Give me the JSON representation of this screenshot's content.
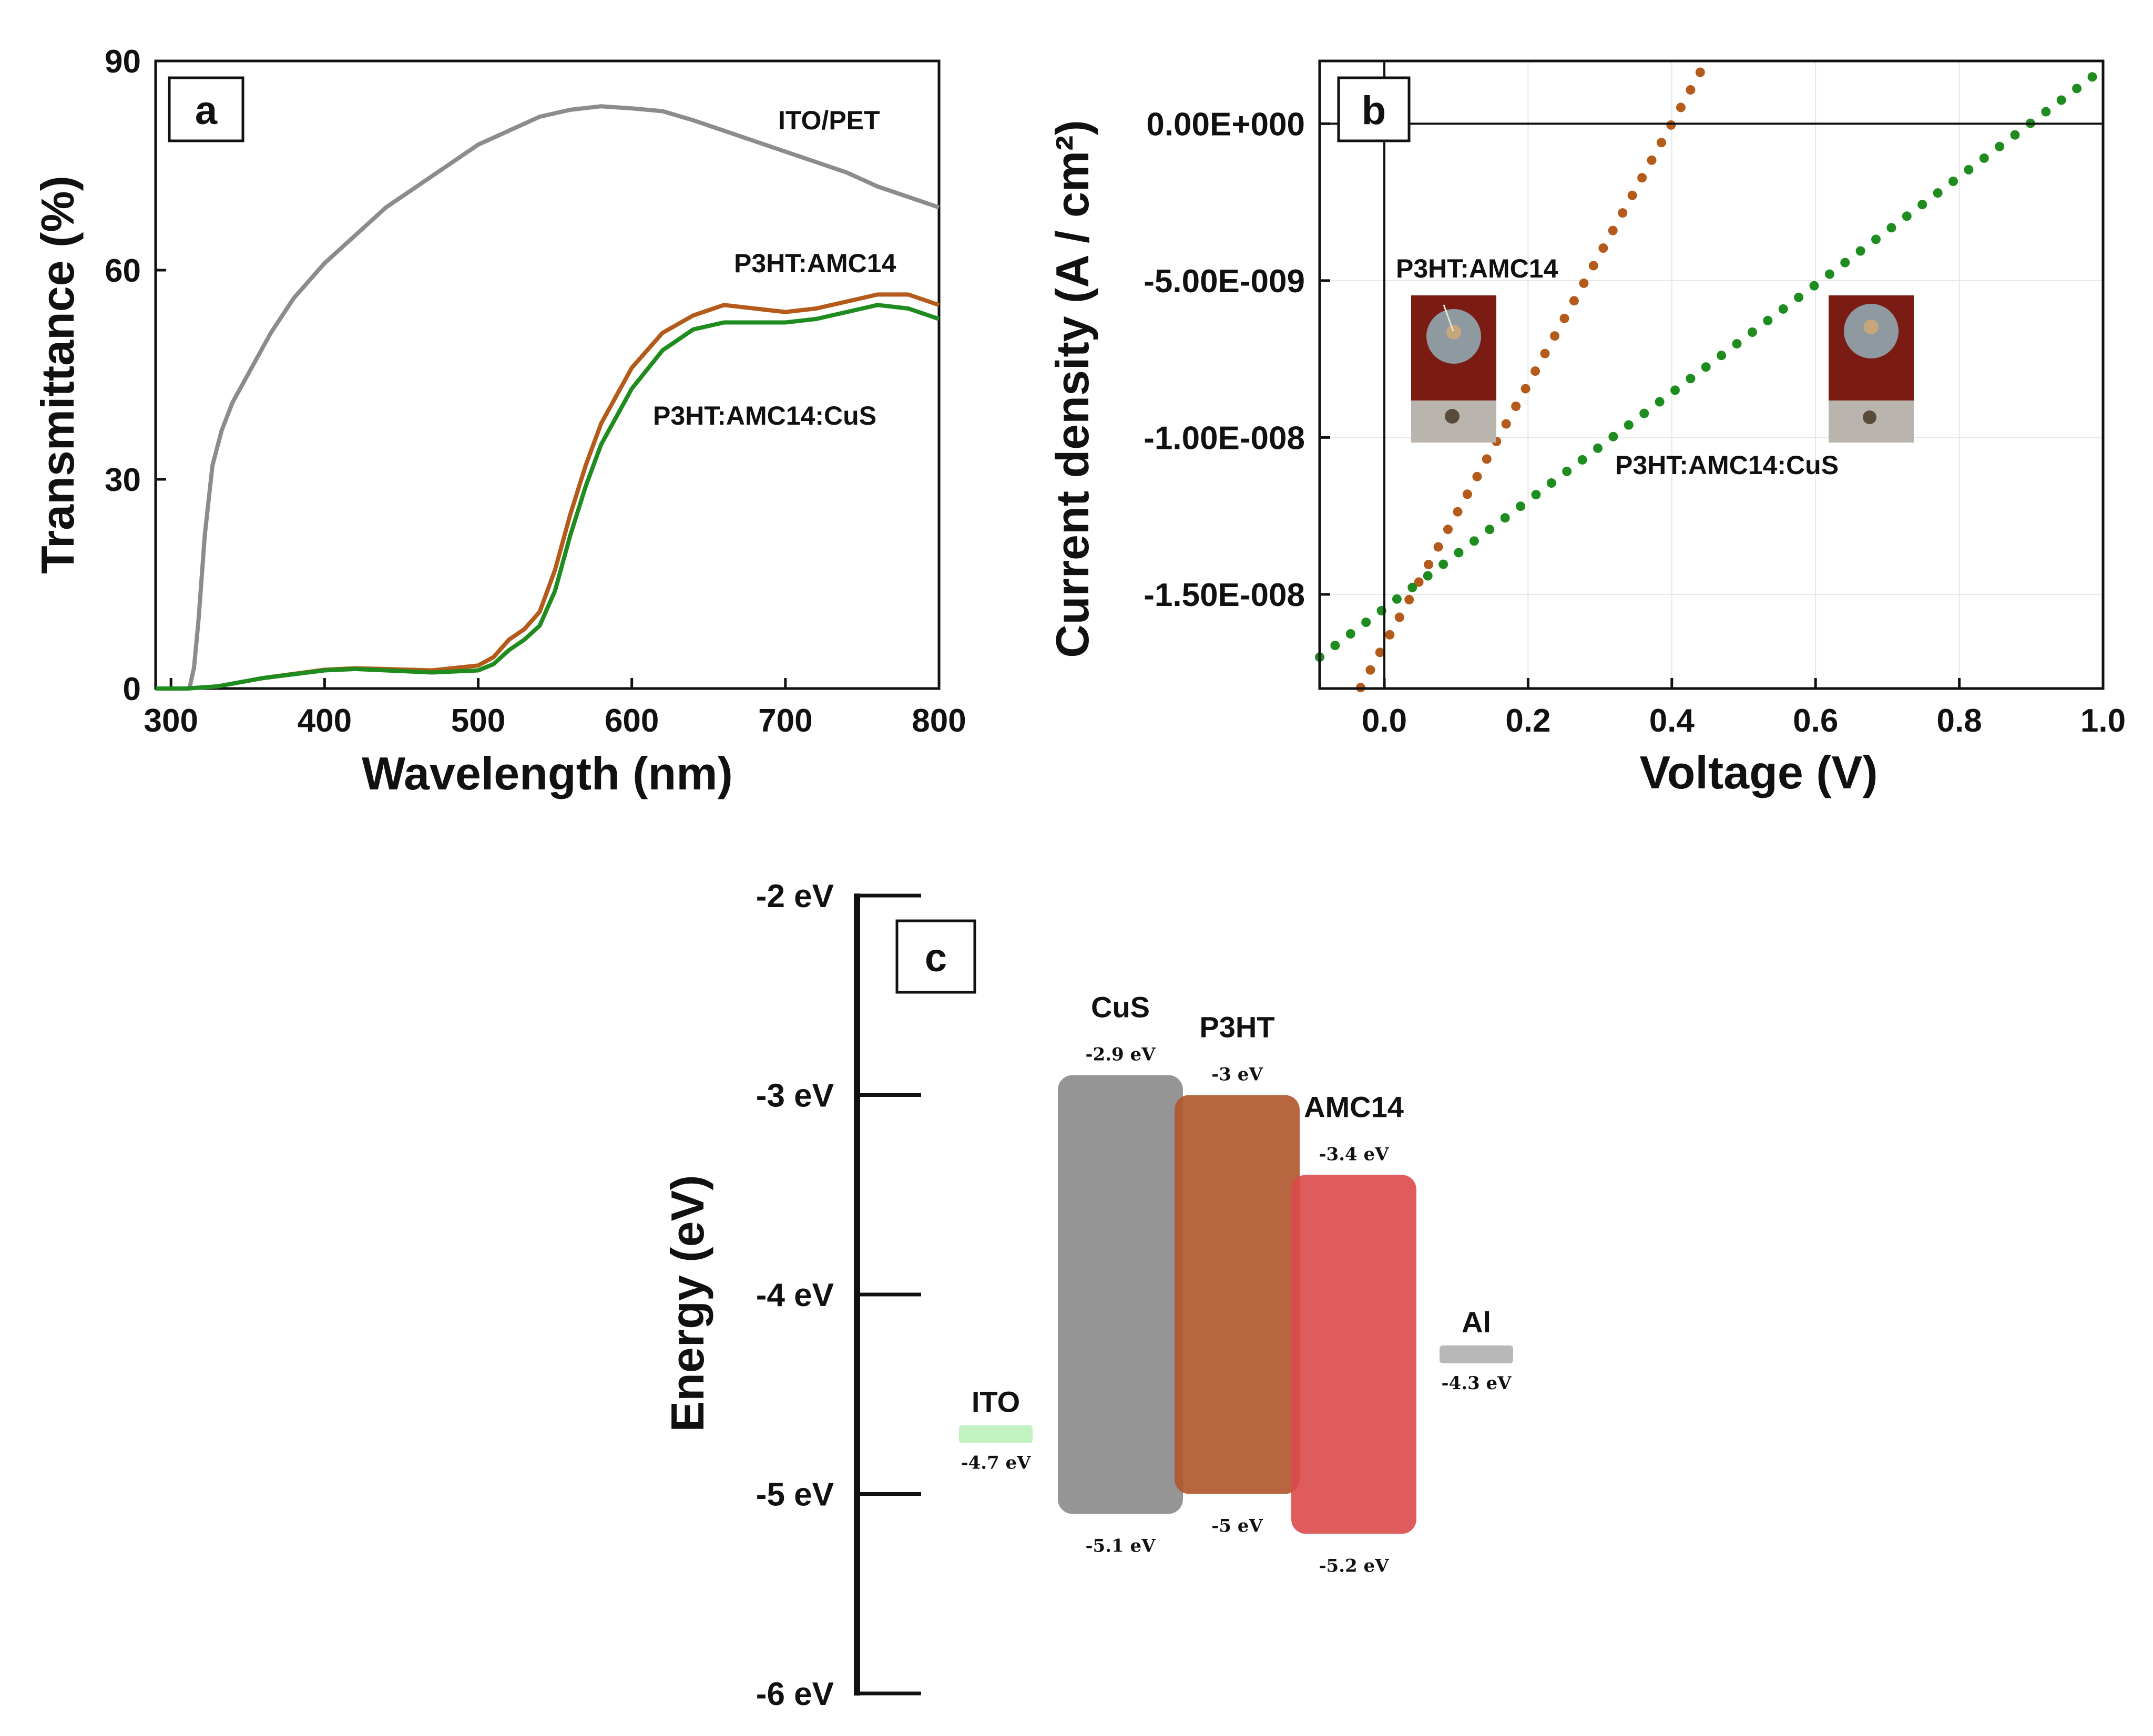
{
  "chart_data": [
    {
      "panel": "a",
      "type": "line",
      "title": "",
      "xlabel": "Wavelength  (nm)",
      "ylabel": "Transmittance  (%)",
      "xlim": [
        290,
        800
      ],
      "ylim": [
        0,
        90
      ],
      "xticks": [
        300,
        400,
        500,
        600,
        700,
        800
      ],
      "yticks": [
        0,
        30,
        60,
        90
      ],
      "grid": false,
      "series": [
        {
          "name": "ITO/PET",
          "color": "#8c8c8c",
          "x": [
            290,
            312,
            315,
            318,
            322,
            327,
            333,
            340,
            350,
            365,
            380,
            400,
            420,
            440,
            460,
            480,
            500,
            520,
            540,
            560,
            580,
            600,
            620,
            640,
            660,
            680,
            700,
            720,
            740,
            760,
            780,
            800
          ],
          "y": [
            0,
            0,
            3,
            10,
            22,
            32,
            37,
            41,
            45,
            51,
            56,
            61,
            65,
            69,
            72,
            75,
            78,
            80,
            82,
            83,
            83.5,
            83.2,
            82.8,
            81.5,
            80,
            78.5,
            77,
            75.5,
            74,
            72,
            70.5,
            69
          ]
        },
        {
          "name": "P3HT:AMC14",
          "color": "#b45a1a",
          "x": [
            290,
            310,
            330,
            360,
            400,
            420,
            440,
            470,
            500,
            510,
            520,
            530,
            540,
            550,
            560,
            570,
            580,
            600,
            620,
            640,
            660,
            680,
            700,
            720,
            740,
            760,
            780,
            800
          ],
          "y": [
            0,
            0,
            0.3,
            1.5,
            2.7,
            2.9,
            2.8,
            2.6,
            3.3,
            4.5,
            7,
            8.5,
            11,
            17,
            25,
            32,
            38,
            46,
            51,
            53.5,
            55,
            54.5,
            54,
            54.5,
            55.5,
            56.5,
            56.5,
            55
          ]
        },
        {
          "name": "P3HT:AMC14:CuS",
          "color": "#1e8c1e",
          "x": [
            290,
            310,
            330,
            360,
            400,
            420,
            440,
            470,
            500,
            510,
            520,
            530,
            540,
            550,
            560,
            570,
            580,
            600,
            620,
            640,
            660,
            680,
            700,
            720,
            740,
            760,
            780,
            800
          ],
          "y": [
            0,
            0,
            0.3,
            1.5,
            2.6,
            2.8,
            2.6,
            2.3,
            2.6,
            3.5,
            5.5,
            7,
            9,
            14,
            22,
            29,
            35,
            43,
            48.5,
            51.5,
            52.5,
            52.5,
            52.5,
            53,
            54,
            55,
            54.5,
            53
          ]
        }
      ],
      "annotations": [
        "ITO/PET",
        "P3HT:AMC14",
        "P3HT:AMC14:CuS"
      ]
    },
    {
      "panel": "b",
      "type": "scatter",
      "title": "",
      "xlabel": "Voltage  (V)",
      "ylabel": "Current  density  (A / cm²)",
      "xlim": [
        -0.09,
        1.0
      ],
      "ylim": [
        -1.8e-08,
        2e-09
      ],
      "xticks": [
        0.0,
        0.2,
        0.4,
        0.6,
        0.8,
        1.0
      ],
      "xtick_labels": [
        "0.0",
        "0.2",
        "0.4",
        "0.6",
        "0.8",
        "1.0"
      ],
      "yticks": [
        0,
        -5e-09,
        -1e-08,
        -1.5e-08
      ],
      "ytick_labels": [
        "0.00E+000",
        "-5.00E-009",
        "-1.00E-008",
        "-1.50E-008"
      ],
      "grid": true,
      "series": [
        {
          "name": "P3HT:AMC14",
          "color": "#b45a1a",
          "x_start": -0.06,
          "x_end": 0.47,
          "step": 0.0135,
          "line": {
            "slope": 4.15e-08,
            "intercept": -1.66e-08
          }
        },
        {
          "name": "P3HT:AMC14:CuS",
          "color": "#1e8c1e",
          "x_start": -0.09,
          "x_end": 1.0,
          "step": 0.0215,
          "line": {
            "slope": 1.72e-08,
            "intercept": -1.545e-08
          }
        }
      ],
      "annotations": [
        "P3HT:AMC14",
        "P3HT:AMC14:CuS"
      ]
    },
    {
      "panel": "c",
      "type": "diagram",
      "title": "",
      "ylabel": "Energy  (eV)",
      "ylim": [
        -6,
        -2
      ],
      "yticks": [
        -2,
        -3,
        -4,
        -5,
        -6
      ],
      "ytick_labels": [
        "-2 eV",
        "-3 eV",
        "-4 eV",
        "-5 eV",
        "-6 eV"
      ],
      "bands": [
        {
          "name": "CuS",
          "top": -2.9,
          "bottom": -5.1,
          "top_label": "-2.9 eV",
          "bottom_label": "-5.1 eV",
          "color": "#8a8a8a"
        },
        {
          "name": "P3HT",
          "top": -3.0,
          "bottom": -5.0,
          "top_label": "-3 eV",
          "bottom_label": "-5 eV",
          "color": "#b0552a"
        },
        {
          "name": "AMC14",
          "top": -3.4,
          "bottom": -5.2,
          "top_label": "-3.4 eV",
          "bottom_label": "-5.2 eV",
          "color": "#dc4a4a"
        }
      ],
      "electrodes": [
        {
          "name": "ITO",
          "level": -4.7,
          "label": "-4.7 eV",
          "color": "#c2f2c2"
        },
        {
          "name": "Al",
          "level": -4.3,
          "label": "-4.3 eV",
          "color": "#b8b8b8"
        }
      ]
    }
  ],
  "panels": {
    "a": "a",
    "b": "b",
    "c": "c"
  }
}
